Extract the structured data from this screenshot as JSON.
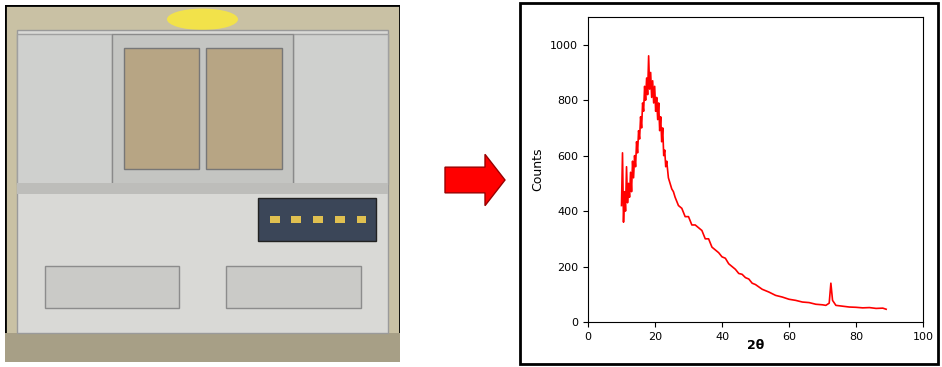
{
  "chart_data": {
    "type": "line",
    "x_label": "2θ",
    "y_label": "Counts",
    "x": [
      10,
      10.3,
      10.6,
      10.9,
      11.2,
      11.5,
      11.8,
      12.1,
      12.4,
      12.7,
      13,
      13.3,
      13.6,
      13.9,
      14.2,
      14.5,
      14.8,
      15.1,
      15.4,
      15.7,
      16,
      16.3,
      16.6,
      16.9,
      17.2,
      17.5,
      17.8,
      18.1,
      18.4,
      18.7,
      19,
      19.3,
      19.6,
      19.9,
      20.2,
      20.5,
      20.8,
      21.1,
      21.4,
      21.7,
      22,
      22.3,
      22.6,
      22.9,
      23.2,
      23.5,
      24,
      24.5,
      25,
      25.5,
      26,
      27,
      28,
      29,
      30,
      31,
      32,
      33,
      34,
      35,
      36,
      37,
      38,
      39,
      40,
      41,
      42,
      43,
      44,
      45,
      46,
      47,
      48,
      49,
      50,
      52,
      54,
      56,
      58,
      60,
      62,
      64,
      66,
      68,
      70,
      71,
      72,
      72.5,
      73,
      74,
      76,
      78,
      80,
      82,
      84,
      86,
      88,
      89
    ],
    "values": [
      420,
      610,
      360,
      470,
      400,
      560,
      430,
      500,
      450,
      540,
      470,
      580,
      520,
      600,
      560,
      650,
      610,
      690,
      660,
      740,
      700,
      790,
      760,
      850,
      800,
      880,
      820,
      960,
      840,
      900,
      810,
      870,
      790,
      850,
      760,
      810,
      730,
      790,
      690,
      740,
      650,
      700,
      600,
      620,
      560,
      580,
      520,
      500,
      480,
      470,
      450,
      420,
      410,
      380,
      380,
      350,
      350,
      340,
      330,
      300,
      300,
      270,
      260,
      250,
      235,
      230,
      210,
      200,
      190,
      175,
      172,
      160,
      155,
      140,
      135,
      118,
      108,
      96,
      90,
      82,
      78,
      72,
      70,
      64,
      62,
      60,
      68,
      140,
      78,
      60,
      57,
      54,
      53,
      51,
      52,
      49,
      50,
      46
    ],
    "color": "#ff0000",
    "xlim": [
      0,
      100
    ],
    "xticks": [
      0,
      20,
      40,
      60,
      80,
      100
    ],
    "ylim": [
      0,
      1100
    ],
    "yticks": [
      0,
      200,
      400,
      600,
      800,
      1000
    ]
  }
}
